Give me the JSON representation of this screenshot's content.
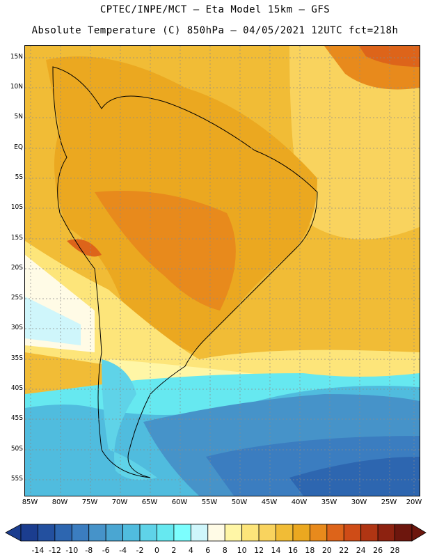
{
  "header": {
    "line1": "CPTEC/INPE/MCT –  Eta Model 15km – GFS",
    "line2": "Absolute Temperature (C) 850hPa – 04/05/2021 12UTC fct=218h"
  },
  "map": {
    "latitudes": [
      "15N",
      "10N",
      "5N",
      "EQ",
      "5S",
      "10S",
      "15S",
      "20S",
      "25S",
      "30S",
      "35S",
      "40S",
      "45S",
      "50S",
      "55S"
    ],
    "longitudes": [
      "85W",
      "80W",
      "75W",
      "70W",
      "65W",
      "60W",
      "55W",
      "50W",
      "45W",
      "40W",
      "35W",
      "30W",
      "25W",
      "20W"
    ]
  },
  "legend": {
    "labels": [
      "-14",
      "-12",
      "-10",
      "-8",
      "-6",
      "-4",
      "-2",
      "0",
      "2",
      "4",
      "6",
      "8",
      "10",
      "12",
      "14",
      "16",
      "18",
      "20",
      "22",
      "24",
      "26",
      "28"
    ],
    "colors": [
      "#1b3d8f",
      "#23509f",
      "#2d66b0",
      "#3b7dc0",
      "#4693c9",
      "#4aa6d2",
      "#50bcde",
      "#5fd3e8",
      "#66e8f0",
      "#7cfefe",
      "#cff6fb",
      "#fffbe6",
      "#fff6a6",
      "#fde57a",
      "#f9d35e",
      "#f1bc36",
      "#eba820",
      "#e88a1c",
      "#dd641a",
      "#cf4c17",
      "#b03513",
      "#8d2210",
      "#6d160d"
    ]
  }
}
